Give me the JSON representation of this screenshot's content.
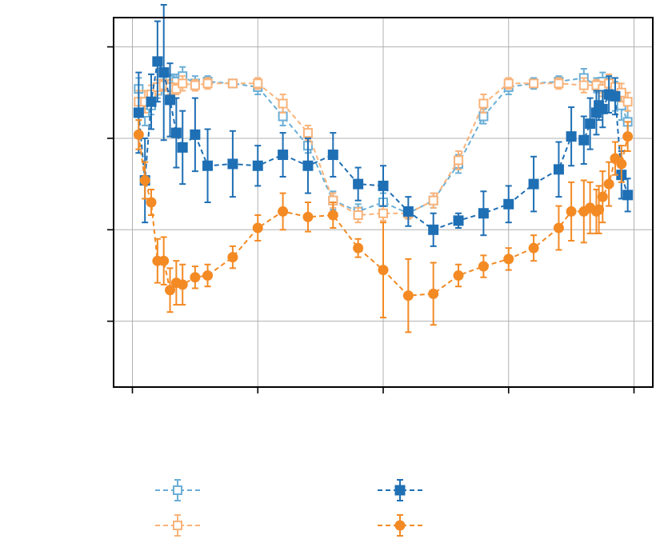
{
  "chart_data": {
    "type": "line",
    "title": "",
    "xlabel": "",
    "ylabel": "",
    "xlim": [
      -0.15,
      4.15
    ],
    "ylim": [
      -0.36,
      1.66
    ],
    "x_ticks": [
      0,
      1,
      2,
      3,
      4
    ],
    "y_ticks": [
      0,
      0.5,
      1,
      1.5
    ],
    "grid": true,
    "legend": {
      "placement": "below",
      "columns": 2
    },
    "colors": {
      "light_blue": "#6aaed6",
      "dark_blue": "#1f6fb4",
      "light_orange": "#f9b37a",
      "dark_orange": "#f38a24",
      "grid": "#b0b0b0",
      "axes": "#000000"
    },
    "series": [
      {
        "marker": "open-square",
        "color": "#6aaed6",
        "x": [
          0.05,
          0.1,
          0.15,
          0.2,
          0.25,
          0.3,
          0.35,
          0.4,
          0.5,
          0.6,
          0.8,
          1.0,
          1.2,
          1.4,
          1.6,
          1.8,
          2.0,
          2.2,
          2.4,
          2.6,
          2.8,
          3.0,
          3.2,
          3.4,
          3.6,
          3.7,
          3.75,
          3.8,
          3.85,
          3.9,
          3.95
        ],
        "y": [
          1.27,
          1.14,
          1.18,
          1.26,
          1.3,
          1.32,
          1.31,
          1.34,
          1.3,
          1.31,
          1.3,
          1.28,
          1.12,
          0.96,
          0.66,
          0.6,
          0.65,
          0.59,
          0.66,
          0.86,
          1.12,
          1.28,
          1.3,
          1.31,
          1.33,
          1.29,
          1.31,
          1.27,
          1.23,
          1.18,
          1.09
        ],
        "err": [
          0.06,
          0.07,
          0.05,
          0.04,
          0.04,
          0.03,
          0.04,
          0.05,
          0.04,
          0.03,
          0.02,
          0.04,
          0.05,
          0.04,
          0.05,
          0.04,
          0.05,
          0.03,
          0.04,
          0.05,
          0.04,
          0.04,
          0.03,
          0.03,
          0.05,
          0.04,
          0.05,
          0.06,
          0.08,
          0.08,
          0.06
        ]
      },
      {
        "marker": "open-square",
        "color": "#f9b37a",
        "x": [
          0.05,
          0.1,
          0.15,
          0.2,
          0.25,
          0.3,
          0.35,
          0.4,
          0.5,
          0.6,
          0.8,
          1.0,
          1.2,
          1.4,
          1.6,
          1.8,
          2.0,
          2.2,
          2.4,
          2.6,
          2.8,
          3.0,
          3.2,
          3.4,
          3.6,
          3.7,
          3.75,
          3.8,
          3.85,
          3.9,
          3.95
        ],
        "y": [
          1.2,
          1.2,
          1.24,
          1.28,
          1.29,
          1.28,
          1.27,
          1.3,
          1.29,
          1.3,
          1.3,
          1.3,
          1.19,
          1.03,
          0.66,
          0.58,
          0.59,
          0.59,
          0.66,
          0.88,
          1.19,
          1.3,
          1.3,
          1.3,
          1.29,
          1.29,
          1.27,
          1.3,
          1.28,
          1.25,
          1.2
        ],
        "err": [
          0.06,
          0.06,
          0.05,
          0.04,
          0.03,
          0.04,
          0.03,
          0.04,
          0.03,
          0.03,
          0.02,
          0.03,
          0.05,
          0.04,
          0.04,
          0.04,
          0.04,
          0.03,
          0.04,
          0.05,
          0.05,
          0.03,
          0.02,
          0.03,
          0.04,
          0.03,
          0.04,
          0.05,
          0.05,
          0.05,
          0.05
        ]
      },
      {
        "marker": "filled-square",
        "color": "#1f6fb4",
        "x": [
          0.05,
          0.1,
          0.15,
          0.2,
          0.25,
          0.3,
          0.35,
          0.4,
          0.5,
          0.6,
          0.8,
          1.0,
          1.2,
          1.4,
          1.6,
          1.8,
          2.0,
          2.2,
          2.4,
          2.6,
          2.8,
          3.0,
          3.2,
          3.4,
          3.5,
          3.6,
          3.65,
          3.7,
          3.72,
          3.75,
          3.8,
          3.85,
          3.9,
          3.95
        ],
        "y": [
          1.14,
          0.77,
          1.2,
          1.42,
          1.36,
          1.21,
          1.03,
          0.95,
          1.02,
          0.85,
          0.86,
          0.85,
          0.91,
          0.85,
          0.91,
          0.75,
          0.74,
          0.6,
          0.5,
          0.55,
          0.59,
          0.64,
          0.75,
          0.83,
          1.01,
          0.99,
          1.08,
          1.14,
          1.18,
          1.16,
          1.24,
          1.23,
          0.8,
          0.69
        ],
        "err": [
          0.22,
          0.23,
          0.15,
          0.22,
          0.37,
          0.2,
          0.19,
          0.2,
          0.2,
          0.2,
          0.18,
          0.11,
          0.12,
          0.15,
          0.12,
          0.09,
          0.11,
          0.08,
          0.09,
          0.04,
          0.12,
          0.1,
          0.15,
          0.15,
          0.16,
          0.13,
          0.14,
          0.12,
          0.08,
          0.1,
          0.1,
          0.1,
          0.13,
          0.09
        ]
      },
      {
        "marker": "filled-circle",
        "color": "#f38a24",
        "x": [
          0.05,
          0.1,
          0.15,
          0.2,
          0.25,
          0.3,
          0.35,
          0.4,
          0.5,
          0.6,
          0.8,
          1.0,
          1.2,
          1.4,
          1.6,
          1.8,
          2.0,
          2.2,
          2.4,
          2.6,
          2.8,
          3.0,
          3.2,
          3.4,
          3.5,
          3.6,
          3.65,
          3.7,
          3.72,
          3.75,
          3.8,
          3.85,
          3.9,
          3.95
        ],
        "y": [
          1.02,
          0.77,
          0.65,
          0.33,
          0.33,
          0.17,
          0.21,
          0.2,
          0.24,
          0.25,
          0.35,
          0.51,
          0.6,
          0.57,
          0.58,
          0.4,
          0.28,
          0.14,
          0.15,
          0.25,
          0.3,
          0.34,
          0.4,
          0.51,
          0.6,
          0.6,
          0.62,
          0.6,
          0.61,
          0.68,
          0.75,
          0.89,
          0.86,
          1.01
        ],
        "err": [
          0.08,
          0.1,
          0.07,
          0.12,
          0.13,
          0.12,
          0.12,
          0.11,
          0.06,
          0.06,
          0.06,
          0.07,
          0.1,
          0.08,
          0.07,
          0.05,
          0.26,
          0.2,
          0.17,
          0.06,
          0.06,
          0.06,
          0.07,
          0.12,
          0.16,
          0.17,
          0.14,
          0.12,
          0.13,
          0.14,
          0.12,
          0.09,
          0.1,
          0.08
        ]
      }
    ]
  }
}
